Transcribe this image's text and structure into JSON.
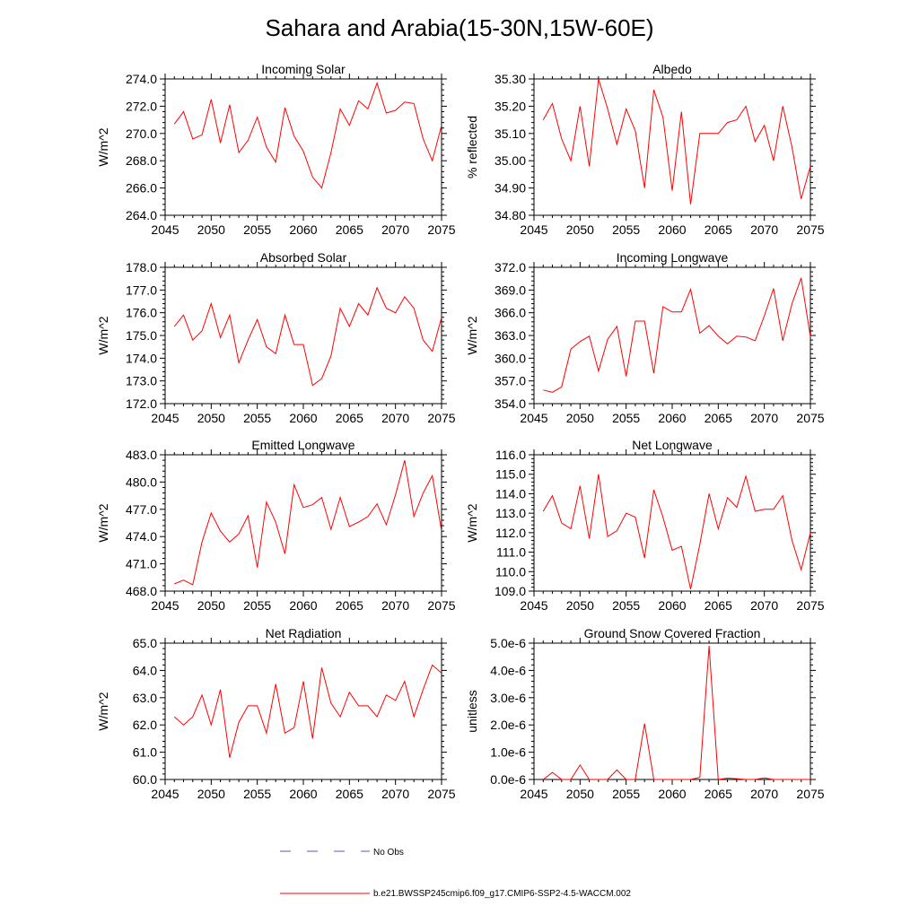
{
  "page_title": "Sahara and Arabia(15-30N,15W-60E)",
  "legend": {
    "obs_label": "No Obs",
    "obs_color": "#5a5ac8",
    "model_label": "b.e21.BWSSP245cmip6.f09_g17.CMIP6-SSP2-4.5-WACCM.002",
    "model_color": "#ff0000"
  },
  "chart_data": [
    {
      "id": "incoming-solar",
      "type": "line",
      "title": "Incoming Solar",
      "xlabel": "",
      "ylabel": "W/m^2",
      "xlim": [
        2045,
        2075
      ],
      "ylim": [
        264.0,
        274.0
      ],
      "xticks": [
        2045,
        2050,
        2055,
        2060,
        2065,
        2070,
        2075
      ],
      "yticks": [
        "264.0",
        "266.0",
        "268.0",
        "270.0",
        "272.0",
        "274.0"
      ],
      "grid": false,
      "series": [
        {
          "color": "#ff0000",
          "x": [
            2046,
            2047,
            2048,
            2049,
            2050,
            2051,
            2052,
            2053,
            2054,
            2055,
            2056,
            2057,
            2058,
            2059,
            2060,
            2061,
            2062,
            2063,
            2064,
            2065,
            2066,
            2067,
            2068,
            2069,
            2070,
            2071,
            2072,
            2073,
            2074,
            2075
          ],
          "y": [
            270.7,
            271.6,
            269.6,
            269.9,
            272.5,
            269.3,
            272.1,
            268.6,
            269.5,
            271.2,
            269.0,
            267.9,
            271.9,
            269.8,
            268.7,
            266.8,
            266.0,
            268.6,
            271.8,
            270.6,
            272.4,
            271.8,
            273.7,
            271.5,
            271.7,
            272.3,
            272.2,
            269.6,
            268.0,
            270.6
          ]
        }
      ]
    },
    {
      "id": "albedo",
      "type": "line",
      "title": "Albedo",
      "xlabel": "",
      "ylabel": "% reflected",
      "xlim": [
        2045,
        2075
      ],
      "ylim": [
        34.8,
        35.3
      ],
      "xticks": [
        2045,
        2050,
        2055,
        2060,
        2065,
        2070,
        2075
      ],
      "yticks": [
        "34.80",
        "34.90",
        "35.00",
        "35.10",
        "35.20",
        "35.30"
      ],
      "grid": false,
      "series": [
        {
          "color": "#ff0000",
          "x": [
            2046,
            2047,
            2048,
            2049,
            2050,
            2051,
            2052,
            2053,
            2054,
            2055,
            2056,
            2057,
            2058,
            2059,
            2060,
            2061,
            2062,
            2063,
            2064,
            2065,
            2066,
            2067,
            2068,
            2069,
            2070,
            2071,
            2072,
            2073,
            2074,
            2075
          ],
          "y": [
            35.15,
            35.21,
            35.08,
            35.0,
            35.2,
            34.98,
            35.3,
            35.19,
            35.06,
            35.19,
            35.11,
            34.9,
            35.26,
            35.16,
            34.89,
            35.18,
            34.84,
            35.1,
            35.1,
            35.1,
            35.14,
            35.15,
            35.2,
            35.07,
            35.13,
            35.0,
            35.2,
            35.05,
            34.86,
            34.98
          ]
        }
      ]
    },
    {
      "id": "absorbed-solar",
      "type": "line",
      "title": "Absorbed Solar",
      "xlabel": "",
      "ylabel": "W/m^2",
      "xlim": [
        2045,
        2075
      ],
      "ylim": [
        172.0,
        178.0
      ],
      "xticks": [
        2045,
        2050,
        2055,
        2060,
        2065,
        2070,
        2075
      ],
      "yticks": [
        "172.0",
        "173.0",
        "174.0",
        "175.0",
        "176.0",
        "177.0",
        "178.0"
      ],
      "grid": false,
      "series": [
        {
          "color": "#ff0000",
          "x": [
            2046,
            2047,
            2048,
            2049,
            2050,
            2051,
            2052,
            2053,
            2054,
            2055,
            2056,
            2057,
            2058,
            2059,
            2060,
            2061,
            2062,
            2063,
            2064,
            2065,
            2066,
            2067,
            2068,
            2069,
            2070,
            2071,
            2072,
            2073,
            2074,
            2075
          ],
          "y": [
            175.4,
            175.9,
            174.8,
            175.2,
            176.4,
            174.9,
            175.9,
            173.8,
            174.8,
            175.7,
            174.5,
            174.2,
            175.9,
            174.6,
            174.6,
            172.8,
            173.1,
            174.1,
            176.2,
            175.4,
            176.4,
            175.9,
            177.1,
            176.2,
            176.0,
            176.7,
            176.2,
            174.8,
            174.3,
            175.8
          ]
        }
      ]
    },
    {
      "id": "incoming-longwave",
      "type": "line",
      "title": "Incoming Longwave",
      "xlabel": "",
      "ylabel": "W/m^2",
      "xlim": [
        2045,
        2075
      ],
      "ylim": [
        354.0,
        372.0
      ],
      "xticks": [
        2045,
        2050,
        2055,
        2060,
        2065,
        2070,
        2075
      ],
      "yticks": [
        "354.0",
        "357.0",
        "360.0",
        "363.0",
        "366.0",
        "369.0",
        "372.0"
      ],
      "grid": false,
      "series": [
        {
          "color": "#ff0000",
          "x": [
            2046,
            2047,
            2048,
            2049,
            2050,
            2051,
            2052,
            2053,
            2054,
            2055,
            2056,
            2057,
            2058,
            2059,
            2060,
            2061,
            2062,
            2063,
            2064,
            2065,
            2066,
            2067,
            2068,
            2069,
            2070,
            2071,
            2072,
            2073,
            2074,
            2075
          ],
          "y": [
            355.8,
            355.5,
            356.2,
            361.2,
            362.2,
            362.9,
            358.3,
            362.5,
            364.2,
            357.6,
            364.9,
            364.9,
            358.0,
            366.8,
            366.1,
            366.1,
            369.1,
            363.3,
            364.3,
            362.9,
            361.9,
            362.9,
            362.8,
            362.3,
            365.6,
            369.2,
            362.3,
            367.2,
            370.6,
            362.8
          ]
        }
      ]
    },
    {
      "id": "emitted-longwave",
      "type": "line",
      "title": "Emitted Longwave",
      "xlabel": "",
      "ylabel": "W/m^2",
      "xlim": [
        2045,
        2075
      ],
      "ylim": [
        468.0,
        483.0
      ],
      "xticks": [
        2045,
        2050,
        2055,
        2060,
        2065,
        2070,
        2075
      ],
      "yticks": [
        "468.0",
        "471.0",
        "474.0",
        "477.0",
        "480.0",
        "483.0"
      ],
      "grid": false,
      "series": [
        {
          "color": "#ff0000",
          "x": [
            2046,
            2047,
            2048,
            2049,
            2050,
            2051,
            2052,
            2053,
            2054,
            2055,
            2056,
            2057,
            2058,
            2059,
            2060,
            2061,
            2062,
            2063,
            2064,
            2065,
            2066,
            2067,
            2068,
            2069,
            2070,
            2071,
            2072,
            2073,
            2074,
            2075
          ],
          "y": [
            468.8,
            469.2,
            468.7,
            473.4,
            476.6,
            474.6,
            473.4,
            474.3,
            476.3,
            470.6,
            477.8,
            475.6,
            472.1,
            479.7,
            477.2,
            477.5,
            478.3,
            474.8,
            478.3,
            475.1,
            475.6,
            476.2,
            477.6,
            475.3,
            478.6,
            482.4,
            476.2,
            478.8,
            480.7,
            474.6
          ]
        }
      ]
    },
    {
      "id": "net-longwave",
      "type": "line",
      "title": "Net Longwave",
      "xlabel": "",
      "ylabel": "W/m^2",
      "xlim": [
        2045,
        2075
      ],
      "ylim": [
        109.0,
        116.0
      ],
      "xticks": [
        2045,
        2050,
        2055,
        2060,
        2065,
        2070,
        2075
      ],
      "yticks": [
        "109.0",
        "110.0",
        "111.0",
        "112.0",
        "113.0",
        "114.0",
        "115.0",
        "116.0"
      ],
      "grid": false,
      "series": [
        {
          "color": "#ff0000",
          "x": [
            2046,
            2047,
            2048,
            2049,
            2050,
            2051,
            2052,
            2053,
            2054,
            2055,
            2056,
            2057,
            2058,
            2059,
            2060,
            2061,
            2062,
            2063,
            2064,
            2065,
            2066,
            2067,
            2068,
            2069,
            2070,
            2071,
            2072,
            2073,
            2074,
            2075
          ],
          "y": [
            113.1,
            113.9,
            112.5,
            112.2,
            114.4,
            111.7,
            115.0,
            111.8,
            112.1,
            113.0,
            112.8,
            110.7,
            114.2,
            112.8,
            111.1,
            111.3,
            109.1,
            111.4,
            114.0,
            112.2,
            113.8,
            113.3,
            114.9,
            113.1,
            113.2,
            113.2,
            113.9,
            111.6,
            110.1,
            112.0
          ]
        }
      ]
    },
    {
      "id": "net-radiation",
      "type": "line",
      "title": "Net Radiation",
      "xlabel": "",
      "ylabel": "W/m^2",
      "xlim": [
        2045,
        2075
      ],
      "ylim": [
        60.0,
        65.0
      ],
      "xticks": [
        2045,
        2050,
        2055,
        2060,
        2065,
        2070,
        2075
      ],
      "yticks": [
        "60.0",
        "61.0",
        "62.0",
        "63.0",
        "64.0",
        "65.0"
      ],
      "grid": false,
      "series": [
        {
          "color": "#ff0000",
          "x": [
            2046,
            2047,
            2048,
            2049,
            2050,
            2051,
            2052,
            2053,
            2054,
            2055,
            2056,
            2057,
            2058,
            2059,
            2060,
            2061,
            2062,
            2063,
            2064,
            2065,
            2066,
            2067,
            2068,
            2069,
            2070,
            2071,
            2072,
            2073,
            2074,
            2075
          ],
          "y": [
            62.3,
            62.0,
            62.3,
            63.1,
            62.0,
            63.3,
            60.8,
            62.1,
            62.7,
            62.7,
            61.7,
            63.5,
            61.7,
            61.9,
            63.6,
            61.5,
            64.1,
            62.8,
            62.3,
            63.2,
            62.7,
            62.7,
            62.3,
            63.1,
            62.9,
            63.6,
            62.3,
            63.3,
            64.2,
            63.9
          ]
        }
      ]
    },
    {
      "id": "ground-snow-covered-fraction",
      "type": "line",
      "title": "Ground Snow Covered Fraction",
      "xlabel": "",
      "ylabel": "unitless",
      "xlim": [
        2045,
        2075
      ],
      "ylim": [
        0.0,
        5e-06
      ],
      "xticks": [
        2045,
        2050,
        2055,
        2060,
        2065,
        2070,
        2075
      ],
      "yticks": [
        "0.0e-6",
        "1.0e-6",
        "2.0e-6",
        "3.0e-6",
        "4.0e-6",
        "5.0e-6"
      ],
      "grid": false,
      "series": [
        {
          "color": "#ff0000",
          "x": [
            2046,
            2047,
            2048,
            2049,
            2050,
            2051,
            2052,
            2053,
            2054,
            2055,
            2056,
            2057,
            2058,
            2059,
            2060,
            2061,
            2062,
            2063,
            2064,
            2065,
            2066,
            2067,
            2068,
            2069,
            2070,
            2071,
            2072,
            2073,
            2074,
            2075
          ],
          "y": [
            0.0,
            2.6e-07,
            0.0,
            0.0,
            5.3e-07,
            0.0,
            0.0,
            0.0,
            3.5e-07,
            0.0,
            0.0,
            2.05e-06,
            0.0,
            0.0,
            0.0,
            0.0,
            0.0,
            8e-08,
            4.9e-06,
            0.0,
            5e-08,
            3e-08,
            0.0,
            0.0,
            6e-08,
            0.0,
            0.0,
            0.0,
            0.0,
            0.0
          ]
        }
      ]
    }
  ]
}
